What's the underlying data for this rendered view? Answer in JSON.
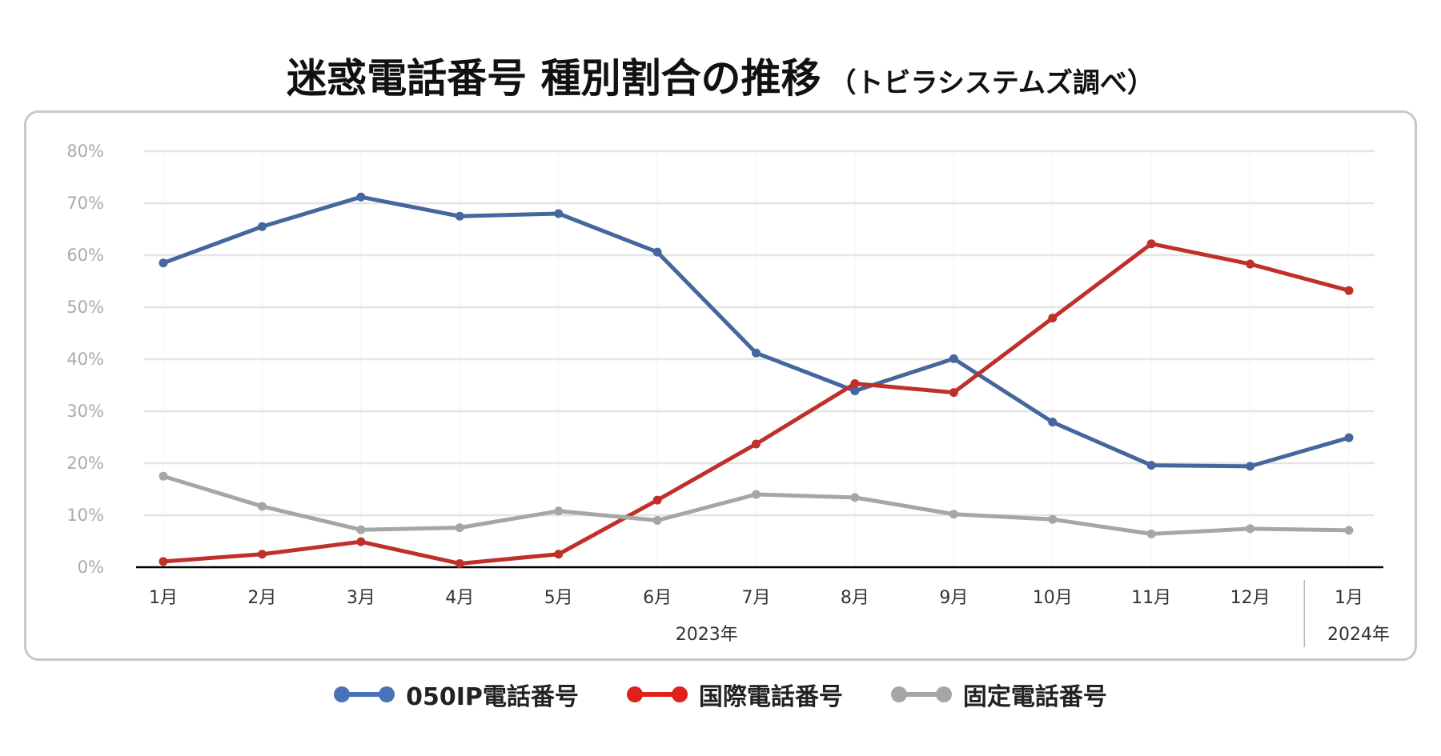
{
  "title": {
    "main": "迷惑電話番号 種別割合の推移",
    "sub": "（トビラシステムズ調べ）"
  },
  "chart_data": {
    "type": "line",
    "title": "迷惑電話番号 種別割合の推移（トビラシステムズ調べ）",
    "categories": [
      "1月",
      "2月",
      "3月",
      "4月",
      "5月",
      "6月",
      "7月",
      "8月",
      "9月",
      "10月",
      "11月",
      "12月",
      "1月"
    ],
    "year_labels": [
      {
        "label": "2023年",
        "span": [
          0,
          11
        ]
      },
      {
        "label": "2024年",
        "span": [
          12,
          12
        ]
      }
    ],
    "ylim": [
      0,
      80
    ],
    "yticks": [
      "0%",
      "10%",
      "20%",
      "30%",
      "40%",
      "50%",
      "60%",
      "70%",
      "80%"
    ],
    "grid": true,
    "legend": "bottom",
    "series": [
      {
        "name": "050IP電話番号",
        "color": "#44679e",
        "legend_color": "#4a72b8",
        "values": [
          58.5,
          65.5,
          71.2,
          67.5,
          68.0,
          60.6,
          41.2,
          33.9,
          40.1,
          27.9,
          19.6,
          19.4,
          24.9
        ]
      },
      {
        "name": "国際電話番号",
        "color": "#c0302a",
        "legend_color": "#e0201a",
        "values": [
          1.1,
          2.5,
          4.9,
          0.7,
          2.5,
          12.9,
          23.7,
          35.3,
          33.6,
          47.9,
          62.2,
          58.3,
          53.2
        ]
      },
      {
        "name": "固定電話番号",
        "color": "#a6a6a6",
        "legend_color": "#a6a6a6",
        "values": [
          17.5,
          11.7,
          7.2,
          7.6,
          10.8,
          9.0,
          14.0,
          13.4,
          10.2,
          9.2,
          6.4,
          7.4,
          7.1
        ]
      }
    ]
  }
}
